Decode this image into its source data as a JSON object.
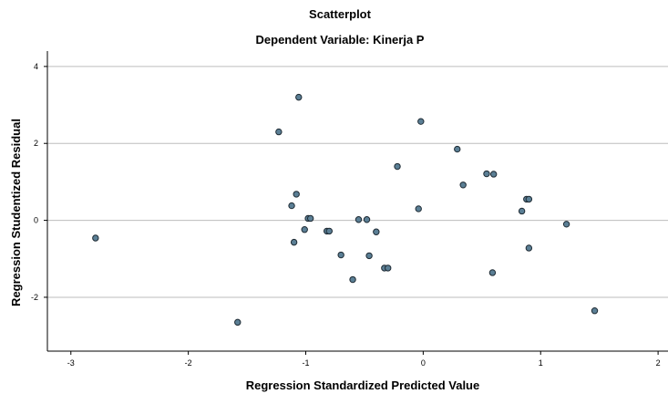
{
  "chart_data": {
    "type": "scatter",
    "title": "Scatterplot",
    "subtitle": "Dependent Variable: Kinerja P",
    "xlabel": "Regression Standardized Predicted Value",
    "ylabel": "Regression Studentized Residual",
    "xlim": [
      -3.2,
      2.1
    ],
    "ylim": [
      -3.4,
      4.4
    ],
    "xticks": [
      "-3",
      "-2",
      "-1",
      "0",
      "1",
      "2"
    ],
    "yticks": [
      "4",
      "2",
      "0",
      "-2"
    ],
    "grid": "horizontal",
    "point_color": "#5b7f95",
    "x": [
      -2.79,
      -1.58,
      -1.23,
      -1.06,
      -1.08,
      -1.12,
      -1.1,
      -1.01,
      -0.98,
      -0.96,
      -0.82,
      -0.8,
      -0.7,
      -0.6,
      -0.55,
      -0.48,
      -0.46,
      -0.4,
      -0.33,
      -0.3,
      -0.22,
      -0.04,
      -0.02,
      0.29,
      0.34,
      0.54,
      0.6,
      0.59,
      0.84,
      0.88,
      0.9,
      0.9,
      1.22,
      1.46
    ],
    "y": [
      -0.46,
      -2.65,
      2.3,
      3.2,
      0.68,
      0.38,
      -0.57,
      -0.24,
      0.05,
      0.05,
      -0.28,
      -0.28,
      -0.9,
      -1.54,
      0.02,
      0.02,
      -0.92,
      -0.3,
      -1.24,
      -1.24,
      1.4,
      0.3,
      2.57,
      1.85,
      0.92,
      1.21,
      1.2,
      -1.36,
      0.24,
      0.55,
      0.55,
      -0.72,
      -0.1,
      -2.35
    ]
  }
}
